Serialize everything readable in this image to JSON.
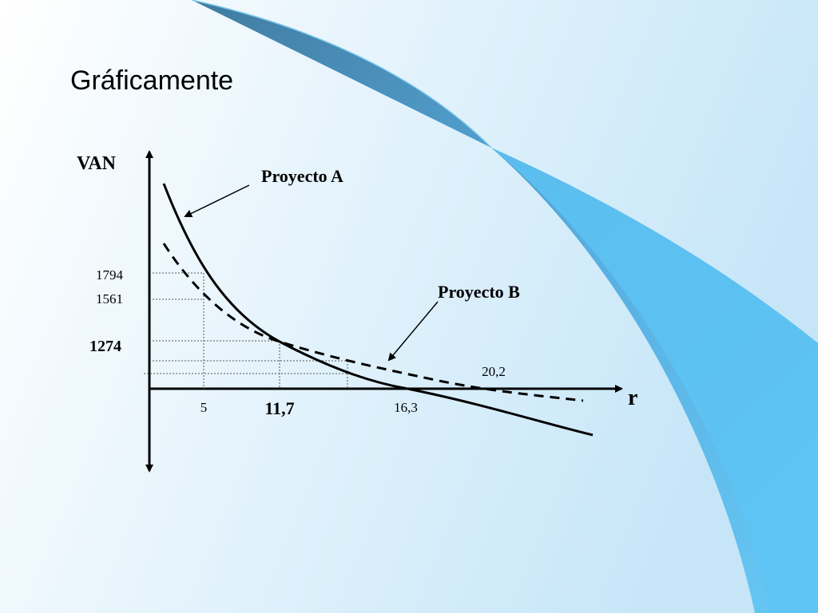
{
  "title": "Gráficamente",
  "axes": {
    "y_label": "VAN",
    "x_label": "r"
  },
  "y_labels": [
    "1794",
    "1561",
    "1274"
  ],
  "x_labels": [
    "5",
    "11,7",
    "16,3",
    "20,2"
  ],
  "curves": [
    {
      "label": "Proyecto A"
    },
    {
      "label": "Proyecto B"
    }
  ]
}
